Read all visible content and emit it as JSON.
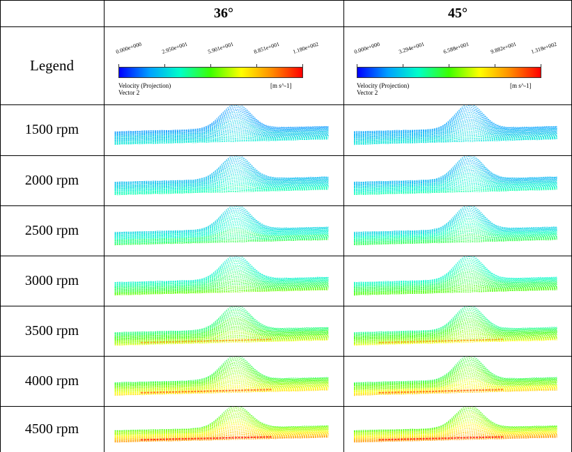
{
  "table": {
    "columns": [
      "36°",
      "45°"
    ],
    "legend_label": "Legend",
    "rows": [
      {
        "label": "1500 rpm",
        "level": 0.28
      },
      {
        "label": "2000 rpm",
        "level": 0.33
      },
      {
        "label": "2500 rpm",
        "level": 0.4
      },
      {
        "label": "3000 rpm",
        "level": 0.48
      },
      {
        "label": "3500 rpm",
        "level": 0.58
      },
      {
        "label": "4000 rpm",
        "level": 0.66
      },
      {
        "label": "4500 rpm",
        "level": 0.75
      }
    ]
  },
  "legends": [
    {
      "ticks": [
        "0.000e+000",
        "2.950e+001",
        "5.901e+001",
        "8.851e+001",
        "1.180e+002"
      ],
      "caption_line1": "Velocity (Projection)",
      "caption_line2": "Vector 2",
      "unit": "[m s^-1]"
    },
    {
      "ticks": [
        "0.000e+000",
        "3.294e+001",
        "6.588e+001",
        "9.882e+001",
        "1.318e+002"
      ],
      "caption_line1": "Velocity (Projection)",
      "caption_line2": "Vector 2",
      "unit": "[m s^-1]"
    }
  ],
  "colors": {
    "scale": [
      "#0000ff",
      "#00a0ff",
      "#00ffc8",
      "#3cff00",
      "#ffff00",
      "#ff8c00",
      "#ff0000"
    ]
  }
}
